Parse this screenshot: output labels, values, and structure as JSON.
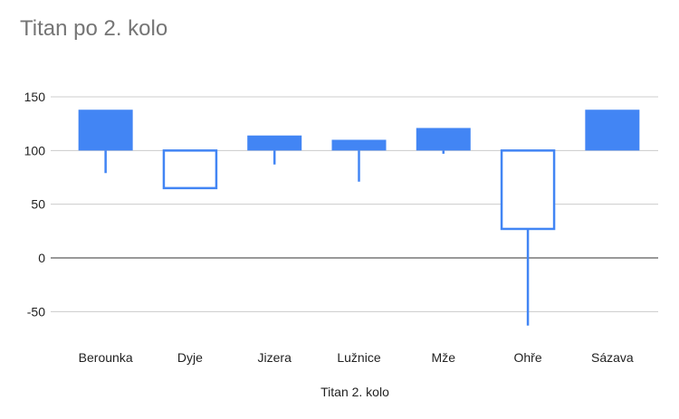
{
  "chart_data": {
    "type": "candlestick",
    "title": "Titan po 2. kolo",
    "xlabel": "Titan 2. kolo",
    "ylabel": "",
    "ylim": [
      -75,
      150
    ],
    "yticks": [
      150,
      100,
      50,
      0,
      -50
    ],
    "ytick_labels": [
      "150",
      "100",
      "50",
      "0",
      "-50"
    ],
    "grid": true,
    "legend": "none",
    "colors": {
      "rising": "#4285f4",
      "falling_stroke": "#4285f4",
      "grid": "#cccccc",
      "zero": "#333333"
    },
    "candles": [
      {
        "label": "Berounka",
        "low": 79,
        "open": 100,
        "close": 138,
        "high": 138
      },
      {
        "label": "Dyje",
        "low": 65,
        "open": 100,
        "close": 65,
        "high": 100
      },
      {
        "label": "Jizera",
        "low": 87,
        "open": 100,
        "close": 114,
        "high": 114
      },
      {
        "label": "Lužnice",
        "low": 71,
        "open": 100,
        "close": 110,
        "high": 110
      },
      {
        "label": "Mže",
        "low": 97,
        "open": 100,
        "close": 121,
        "high": 121
      },
      {
        "label": "Ohře",
        "low": -63,
        "open": 100,
        "close": 27,
        "high": 100
      },
      {
        "label": "Sázava",
        "low": 100,
        "open": 100,
        "close": 138,
        "high": 138
      }
    ]
  }
}
